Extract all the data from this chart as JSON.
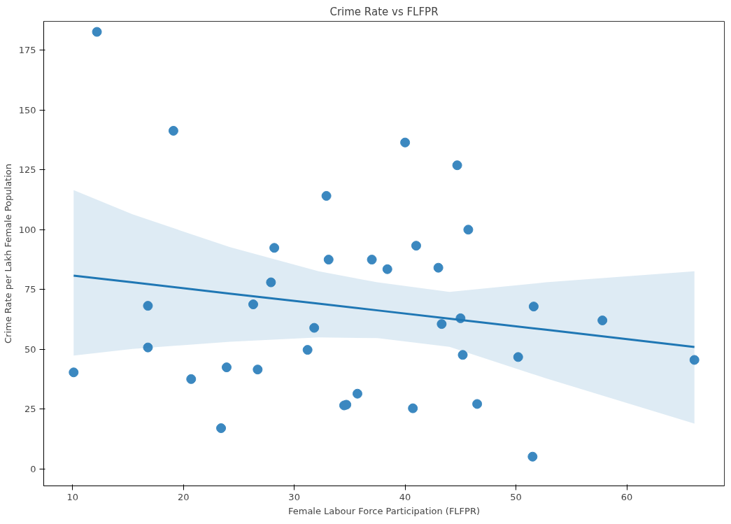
{
  "chart_data": {
    "type": "scatter",
    "title": "Crime Rate vs FLFPR",
    "xlabel": "Female Labour Force Participation (FLFPR)",
    "ylabel": "Crime Rate per Lakh Female Population",
    "xlim": [
      7.4,
      68.8
    ],
    "ylim": [
      -7,
      187
    ],
    "xticks": [
      10,
      20,
      30,
      40,
      50,
      60
    ],
    "yticks": [
      0,
      25,
      50,
      75,
      100,
      125,
      150,
      175
    ],
    "grid": false,
    "series": [
      {
        "marker": "circle",
        "color": "#3b88c0",
        "x": [
          10.1,
          12.2,
          19.1,
          16.8,
          16.8,
          20.7,
          23.9,
          23.4,
          26.7,
          26.3,
          27.9,
          28.2,
          31.8,
          31.2,
          32.9,
          33.1,
          34.5,
          34.7,
          35.7,
          37.0,
          38.4,
          40.0,
          41.0,
          40.7,
          43.0,
          43.3,
          44.7,
          45.0,
          45.2,
          45.7,
          46.5,
          50.2,
          51.6,
          51.5,
          57.8,
          66.1
        ],
        "values": [
          40.4,
          182.6,
          141.3,
          68.2,
          50.8,
          37.6,
          42.5,
          17.1,
          41.6,
          68.8,
          78.0,
          92.4,
          59.0,
          49.8,
          114.1,
          87.5,
          26.6,
          26.9,
          31.5,
          87.5,
          83.5,
          136.4,
          93.3,
          25.4,
          84.1,
          60.6,
          126.9,
          63.0,
          47.7,
          100.0,
          27.2,
          46.8,
          67.9,
          5.2,
          62.1,
          45.6
        ]
      },
      {
        "type": "line",
        "color": "#1f77b4",
        "x": [
          10.1,
          15.4,
          24.2,
          32.2,
          37.5,
          44.0,
          52.7,
          66.1
        ],
        "values": [
          80.8,
          78.0,
          73.3,
          69.1,
          66.3,
          62.8,
          58.2,
          51.0
        ],
        "lower": [
          47.4,
          50.2,
          53.2,
          55.0,
          54.7,
          51.1,
          37.9,
          19.0
        ],
        "upper": [
          116.5,
          106.4,
          92.7,
          82.6,
          78.0,
          74.0,
          78.0,
          82.6
        ]
      }
    ]
  }
}
